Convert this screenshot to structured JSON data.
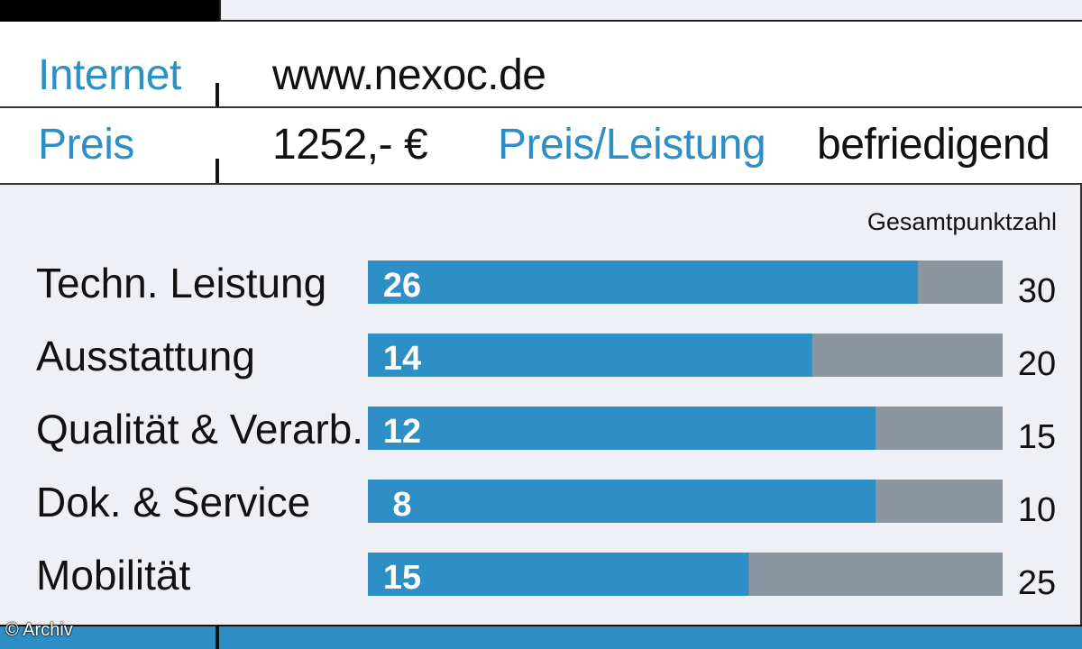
{
  "info": {
    "internet_label": "Internet",
    "internet_value": "www.nexoc.de",
    "price_label": "Preis",
    "price_value": "1252,- €",
    "pl_label": "Preis/Leistung",
    "pl_value": "befriedigend"
  },
  "credit": "© Archiv",
  "colors": {
    "accent": "#2e8fc6",
    "remainder": "#8c96a0",
    "panel": "#eef0f6"
  },
  "chart_data": {
    "type": "bar",
    "orientation": "horizontal",
    "stacked": true,
    "max_header": "Gesamtpunktzahl",
    "categories": [
      "Techn. Leistung",
      "Ausstattung",
      "Qualität & Verarb.",
      "Dok. & Service",
      "Mobilität"
    ],
    "values": [
      26,
      14,
      12,
      8,
      15
    ],
    "max_values": [
      30,
      20,
      15,
      10,
      25
    ]
  }
}
